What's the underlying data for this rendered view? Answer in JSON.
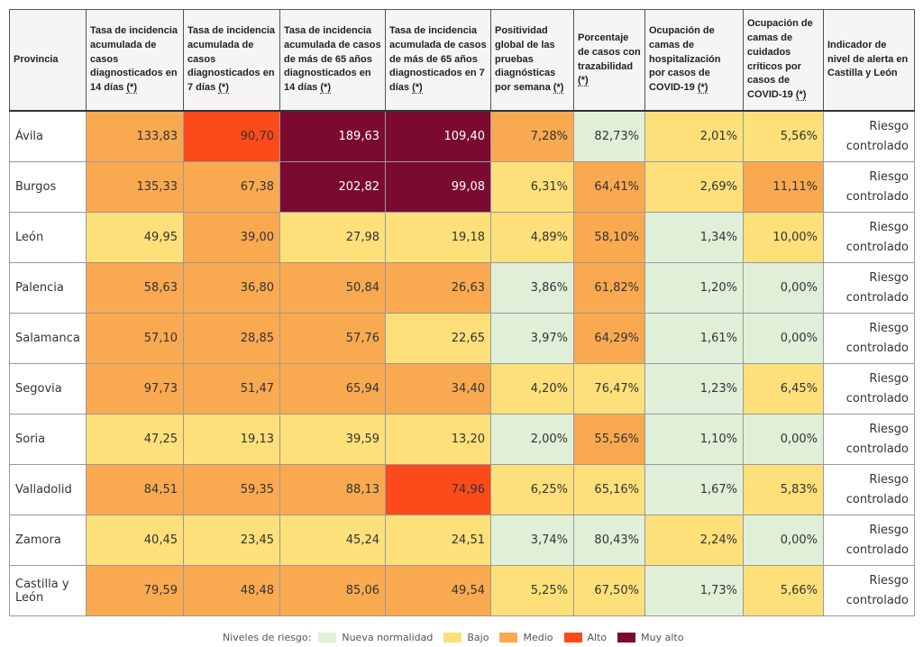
{
  "table": {
    "headers": [
      {
        "label": "Provincia",
        "tip": ""
      },
      {
        "label": "Tasa de incidencia acumulada de casos diagnosticados en 14 días",
        "tip": "(*)"
      },
      {
        "label": "Tasa de incidencia acumulada de casos diagnosticados en 7 días",
        "tip": "(*)"
      },
      {
        "label": "Tasa de incidencia acumulada de casos de más de 65 años diagnosticados en 14 días",
        "tip": "(*)"
      },
      {
        "label": "Tasa de incidencia acumulada de casos de más de 65 años diagnosticados en 7 días",
        "tip": "(*)"
      },
      {
        "label": "Positividad global de las pruebas diagnósticas por semana",
        "tip": "(*)"
      },
      {
        "label": "Porcentaje de casos con trazabilidad",
        "tip": "(*)"
      },
      {
        "label": "Ocupación de camas de hospitalización por casos de COVID-19",
        "tip": "(*)"
      },
      {
        "label": "Ocupación de camas de cuidados críticos por casos de COVID-19",
        "tip": "(*)"
      },
      {
        "label": "Indicador de nivel de alerta en Castilla y León",
        "tip": ""
      }
    ],
    "rows": [
      {
        "province": "Ávila",
        "values": [
          "133,83",
          "90,70",
          "189,63",
          "109,40",
          "7,28%",
          "82,73%",
          "2,01%",
          "5,56%"
        ],
        "levels": [
          "m",
          "a",
          "ma",
          "ma",
          "m",
          "nn",
          "b",
          "b"
        ],
        "indicator": "Riesgo controlado"
      },
      {
        "province": "Burgos",
        "values": [
          "135,33",
          "67,38",
          "202,82",
          "99,08",
          "6,31%",
          "64,41%",
          "2,69%",
          "11,11%"
        ],
        "levels": [
          "m",
          "m",
          "ma",
          "ma",
          "b",
          "m",
          "b",
          "m"
        ],
        "indicator": "Riesgo controlado"
      },
      {
        "province": "León",
        "values": [
          "49,95",
          "39,00",
          "27,98",
          "19,18",
          "4,89%",
          "58,10%",
          "1,34%",
          "10,00%"
        ],
        "levels": [
          "b",
          "m",
          "b",
          "b",
          "b",
          "m",
          "nn",
          "b"
        ],
        "indicator": "Riesgo controlado"
      },
      {
        "province": "Palencia",
        "values": [
          "58,63",
          "36,80",
          "50,84",
          "26,63",
          "3,86%",
          "61,82%",
          "1,20%",
          "0,00%"
        ],
        "levels": [
          "m",
          "m",
          "m",
          "m",
          "nn",
          "m",
          "nn",
          "nn"
        ],
        "indicator": "Riesgo controlado"
      },
      {
        "province": "Salamanca",
        "values": [
          "57,10",
          "28,85",
          "57,76",
          "22,65",
          "3,97%",
          "64,29%",
          "1,61%",
          "0,00%"
        ],
        "levels": [
          "m",
          "m",
          "m",
          "b",
          "nn",
          "m",
          "nn",
          "nn"
        ],
        "indicator": "Riesgo controlado"
      },
      {
        "province": "Segovia",
        "values": [
          "97,73",
          "51,47",
          "65,94",
          "34,40",
          "4,20%",
          "76,47%",
          "1,23%",
          "6,45%"
        ],
        "levels": [
          "m",
          "m",
          "m",
          "m",
          "b",
          "b",
          "nn",
          "b"
        ],
        "indicator": "Riesgo controlado"
      },
      {
        "province": "Soria",
        "values": [
          "47,25",
          "19,13",
          "39,59",
          "13,20",
          "2,00%",
          "55,56%",
          "1,10%",
          "0,00%"
        ],
        "levels": [
          "b",
          "b",
          "b",
          "b",
          "nn",
          "m",
          "nn",
          "nn"
        ],
        "indicator": "Riesgo controlado"
      },
      {
        "province": "Valladolid",
        "values": [
          "84,51",
          "59,35",
          "88,13",
          "74,96",
          "6,25%",
          "65,16%",
          "1,67%",
          "5,83%"
        ],
        "levels": [
          "m",
          "m",
          "m",
          "a",
          "b",
          "b",
          "nn",
          "b"
        ],
        "indicator": "Riesgo controlado"
      },
      {
        "province": "Zamora",
        "values": [
          "40,45",
          "23,45",
          "45,24",
          "24,51",
          "3,74%",
          "80,43%",
          "2,24%",
          "0,00%"
        ],
        "levels": [
          "b",
          "b",
          "b",
          "b",
          "nn",
          "nn",
          "b",
          "nn"
        ],
        "indicator": "Riesgo controlado"
      },
      {
        "province": "Castilla y León",
        "values": [
          "79,59",
          "48,48",
          "85,06",
          "49,54",
          "5,25%",
          "67,50%",
          "1,73%",
          "5,66%"
        ],
        "levels": [
          "m",
          "m",
          "m",
          "m",
          "b",
          "b",
          "nn",
          "b"
        ],
        "indicator": "Riesgo controlado"
      }
    ]
  },
  "legend": {
    "title": "Niveles de riesgo:",
    "items": [
      {
        "key": "nn",
        "label": "Nueva normalidad",
        "color": "#e0f0d8"
      },
      {
        "key": "b",
        "label": "Bajo",
        "color": "#fde07a"
      },
      {
        "key": "m",
        "label": "Medio",
        "color": "#f9a950"
      },
      {
        "key": "a",
        "label": "Alto",
        "color": "#fd4a1a"
      },
      {
        "key": "ma",
        "label": "Muy alto",
        "color": "#7b0a33"
      }
    ]
  }
}
